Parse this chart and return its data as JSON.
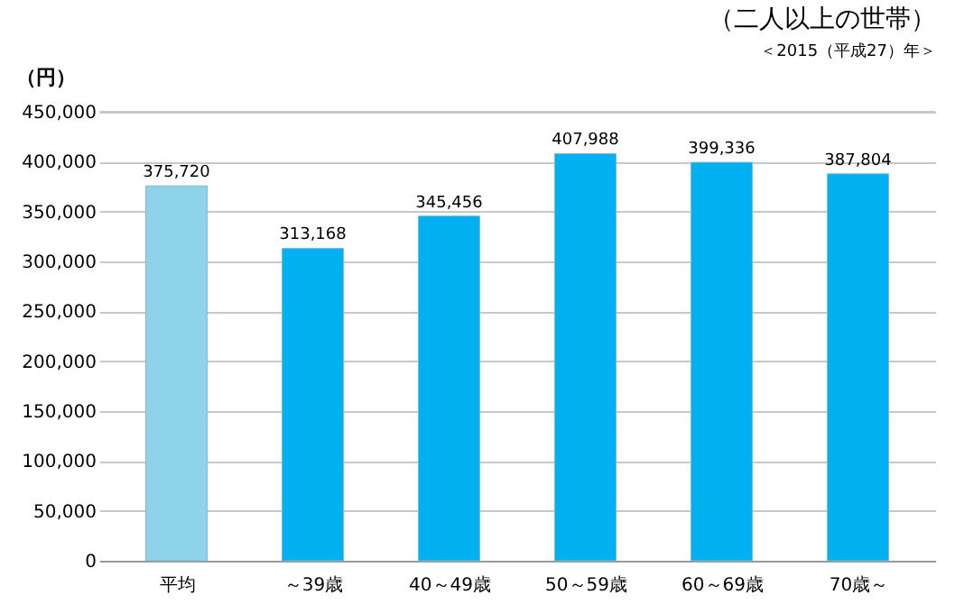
{
  "chart_data": {
    "type": "bar",
    "title": "（二人以上の世帯）",
    "subtitle": "＜2015（平成27）年＞",
    "ylabel": "（円）",
    "categories": [
      "平均",
      "～39歳",
      "40～49歳",
      "50～59歳",
      "60～69歳",
      "70歳～"
    ],
    "values": [
      375720,
      313168,
      345456,
      407988,
      399336,
      387804
    ],
    "value_labels": [
      "375,720",
      "313,168",
      "345,456",
      "407,988",
      "399,336",
      "387,804"
    ],
    "colors": [
      "#8fd3ea",
      "#00b0f0",
      "#00b0f0",
      "#00b0f0",
      "#00b0f0",
      "#00b0f0"
    ],
    "ylim": [
      0,
      450000
    ],
    "yticks": [
      0,
      {
        "value": 50000,
        "label": "50,000"
      },
      {
        "value": 100000,
        "label": "100,000"
      },
      {
        "value": 150000,
        "label": "150,000"
      },
      {
        "value": 200000,
        "label": "200,000"
      },
      {
        "value": 250000,
        "label": "250,000"
      },
      {
        "value": 300000,
        "label": "300,000"
      },
      {
        "value": 350000,
        "label": "350,000"
      },
      {
        "value": 400000,
        "label": "400,000"
      },
      {
        "value": 450000,
        "label": "450,000"
      }
    ],
    "grid": "y"
  }
}
